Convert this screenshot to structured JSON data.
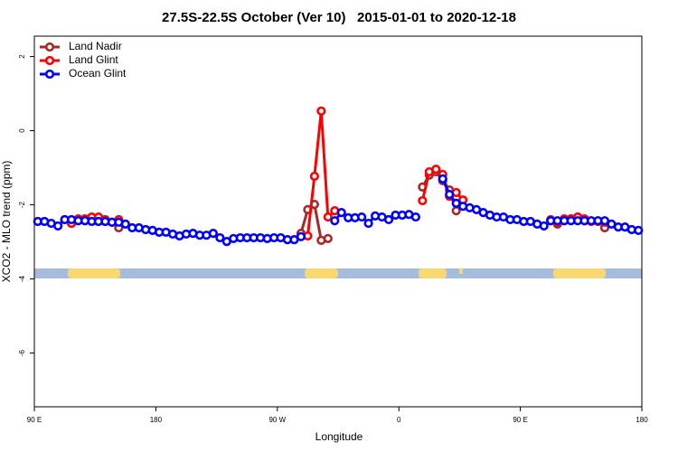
{
  "chart_data": {
    "type": "line",
    "title": "27.5S-22.5S October (Ver 10)   2015-01-01 to 2020-12-18",
    "xlabel": "Longitude",
    "ylabel": "XCO2 - MLO trend (ppm)",
    "xlim": [
      90,
      540
    ],
    "ylim": [
      -7.45,
      2.55
    ],
    "xticks": [
      {
        "value": 90,
        "label": "90 E"
      },
      {
        "value": 180,
        "label": "180"
      },
      {
        "value": 270,
        "label": "90 W"
      },
      {
        "value": 360,
        "label": "0"
      },
      {
        "value": 450,
        "label": "90 E"
      },
      {
        "value": 540,
        "label": "180"
      }
    ],
    "yticks": [
      2,
      0,
      -2,
      -4,
      -6
    ],
    "legend": "top-left",
    "x": [
      92.5,
      97.5,
      102.5,
      107.5,
      112.5,
      117.5,
      122.5,
      127.5,
      132.5,
      137.5,
      142.5,
      147.5,
      152.5,
      157.5,
      162.5,
      167.5,
      172.5,
      177.5,
      182.5,
      187.5,
      192.5,
      197.5,
      202.5,
      207.5,
      212.5,
      217.5,
      222.5,
      227.5,
      232.5,
      237.5,
      242.5,
      247.5,
      252.5,
      257.5,
      262.5,
      267.5,
      272.5,
      277.5,
      282.5,
      287.5,
      292.5,
      297.5,
      302.5,
      307.5,
      312.5,
      317.5,
      322.5,
      327.5,
      332.5,
      337.5,
      342.5,
      347.5,
      352.5,
      357.5,
      362.5,
      367.5,
      372.5,
      377.5,
      382.5,
      387.5,
      392.5,
      397.5,
      402.5,
      407.5,
      412.5,
      417.5,
      422.5,
      427.5,
      432.5,
      437.5,
      442.5,
      447.5,
      452.5,
      457.5,
      462.5,
      467.5,
      472.5,
      477.5,
      482.5,
      487.5,
      492.5,
      497.5,
      502.5,
      507.5,
      512.5,
      517.5,
      522.5,
      527.5,
      532.5,
      537.5
    ],
    "series": [
      {
        "name": "Land Nadir",
        "color": "#a52a2a",
        "values": [
          null,
          null,
          null,
          null,
          -2.4,
          -2.5,
          -2.43,
          -2.43,
          -2.43,
          -2.45,
          -2.45,
          -2.47,
          -2.62,
          null,
          null,
          null,
          null,
          null,
          null,
          null,
          null,
          null,
          null,
          null,
          null,
          null,
          null,
          null,
          null,
          null,
          null,
          null,
          null,
          null,
          null,
          null,
          null,
          null,
          null,
          -2.77,
          -2.13,
          -1.99,
          -2.96,
          -2.91,
          null,
          null,
          null,
          null,
          null,
          null,
          null,
          null,
          null,
          null,
          null,
          null,
          null,
          -1.52,
          -1.2,
          -1.11,
          -1.35,
          -1.6,
          -2.16,
          null,
          null,
          null,
          null,
          null,
          null,
          null,
          null,
          null,
          null,
          null,
          null,
          null,
          -2.4,
          -2.52,
          -2.43,
          -2.38,
          -2.33,
          -2.43,
          -2.43,
          -2.43,
          -2.62,
          null,
          null,
          null,
          null,
          null
        ]
      },
      {
        "name": "Land Glint",
        "color": "#ff0000",
        "values": [
          null,
          null,
          null,
          null,
          null,
          -2.5,
          -2.38,
          -2.38,
          -2.33,
          -2.33,
          -2.4,
          -2.47,
          -2.4,
          null,
          null,
          null,
          null,
          null,
          null,
          null,
          null,
          null,
          null,
          null,
          null,
          null,
          null,
          null,
          null,
          null,
          null,
          null,
          null,
          null,
          null,
          null,
          null,
          null,
          null,
          null,
          -2.84,
          -1.23,
          0.53,
          -2.33,
          -2.16,
          null,
          null,
          null,
          null,
          null,
          null,
          null,
          null,
          null,
          null,
          null,
          null,
          -1.89,
          -1.11,
          -1.04,
          -1.18,
          -1.77,
          -1.67,
          -1.87,
          null,
          null,
          null,
          null,
          null,
          null,
          null,
          null,
          null,
          null,
          null,
          null,
          null,
          -2.47,
          -2.38,
          -2.38,
          -2.33,
          -2.38,
          -2.45,
          -2.45,
          -2.47,
          null,
          null,
          null,
          null,
          null
        ]
      },
      {
        "name": "Ocean Glint",
        "color": "#0000ff",
        "values": [
          -2.45,
          -2.45,
          -2.5,
          -2.57,
          -2.4,
          -2.4,
          -2.43,
          -2.43,
          -2.45,
          -2.45,
          -2.45,
          -2.47,
          -2.47,
          -2.52,
          -2.62,
          -2.62,
          -2.67,
          -2.69,
          -2.74,
          -2.74,
          -2.79,
          -2.84,
          -2.79,
          -2.77,
          -2.82,
          -2.82,
          -2.77,
          -2.89,
          -2.99,
          -2.91,
          -2.89,
          -2.89,
          -2.89,
          -2.89,
          -2.91,
          -2.89,
          -2.89,
          -2.94,
          -2.94,
          -2.86,
          null,
          null,
          null,
          null,
          -2.43,
          -2.21,
          -2.35,
          -2.35,
          -2.33,
          -2.5,
          -2.3,
          -2.33,
          -2.4,
          -2.28,
          -2.28,
          -2.26,
          -2.33,
          null,
          null,
          null,
          -1.3,
          -1.72,
          -1.96,
          -2.04,
          -2.08,
          -2.13,
          -2.21,
          -2.28,
          -2.33,
          -2.33,
          -2.4,
          -2.4,
          -2.45,
          -2.45,
          -2.52,
          -2.57,
          -2.43,
          -2.43,
          -2.43,
          -2.43,
          -2.43,
          -2.43,
          -2.43,
          -2.43,
          -2.43,
          -2.52,
          -2.6,
          -2.6,
          -2.67,
          -2.69
        ]
      }
    ]
  }
}
